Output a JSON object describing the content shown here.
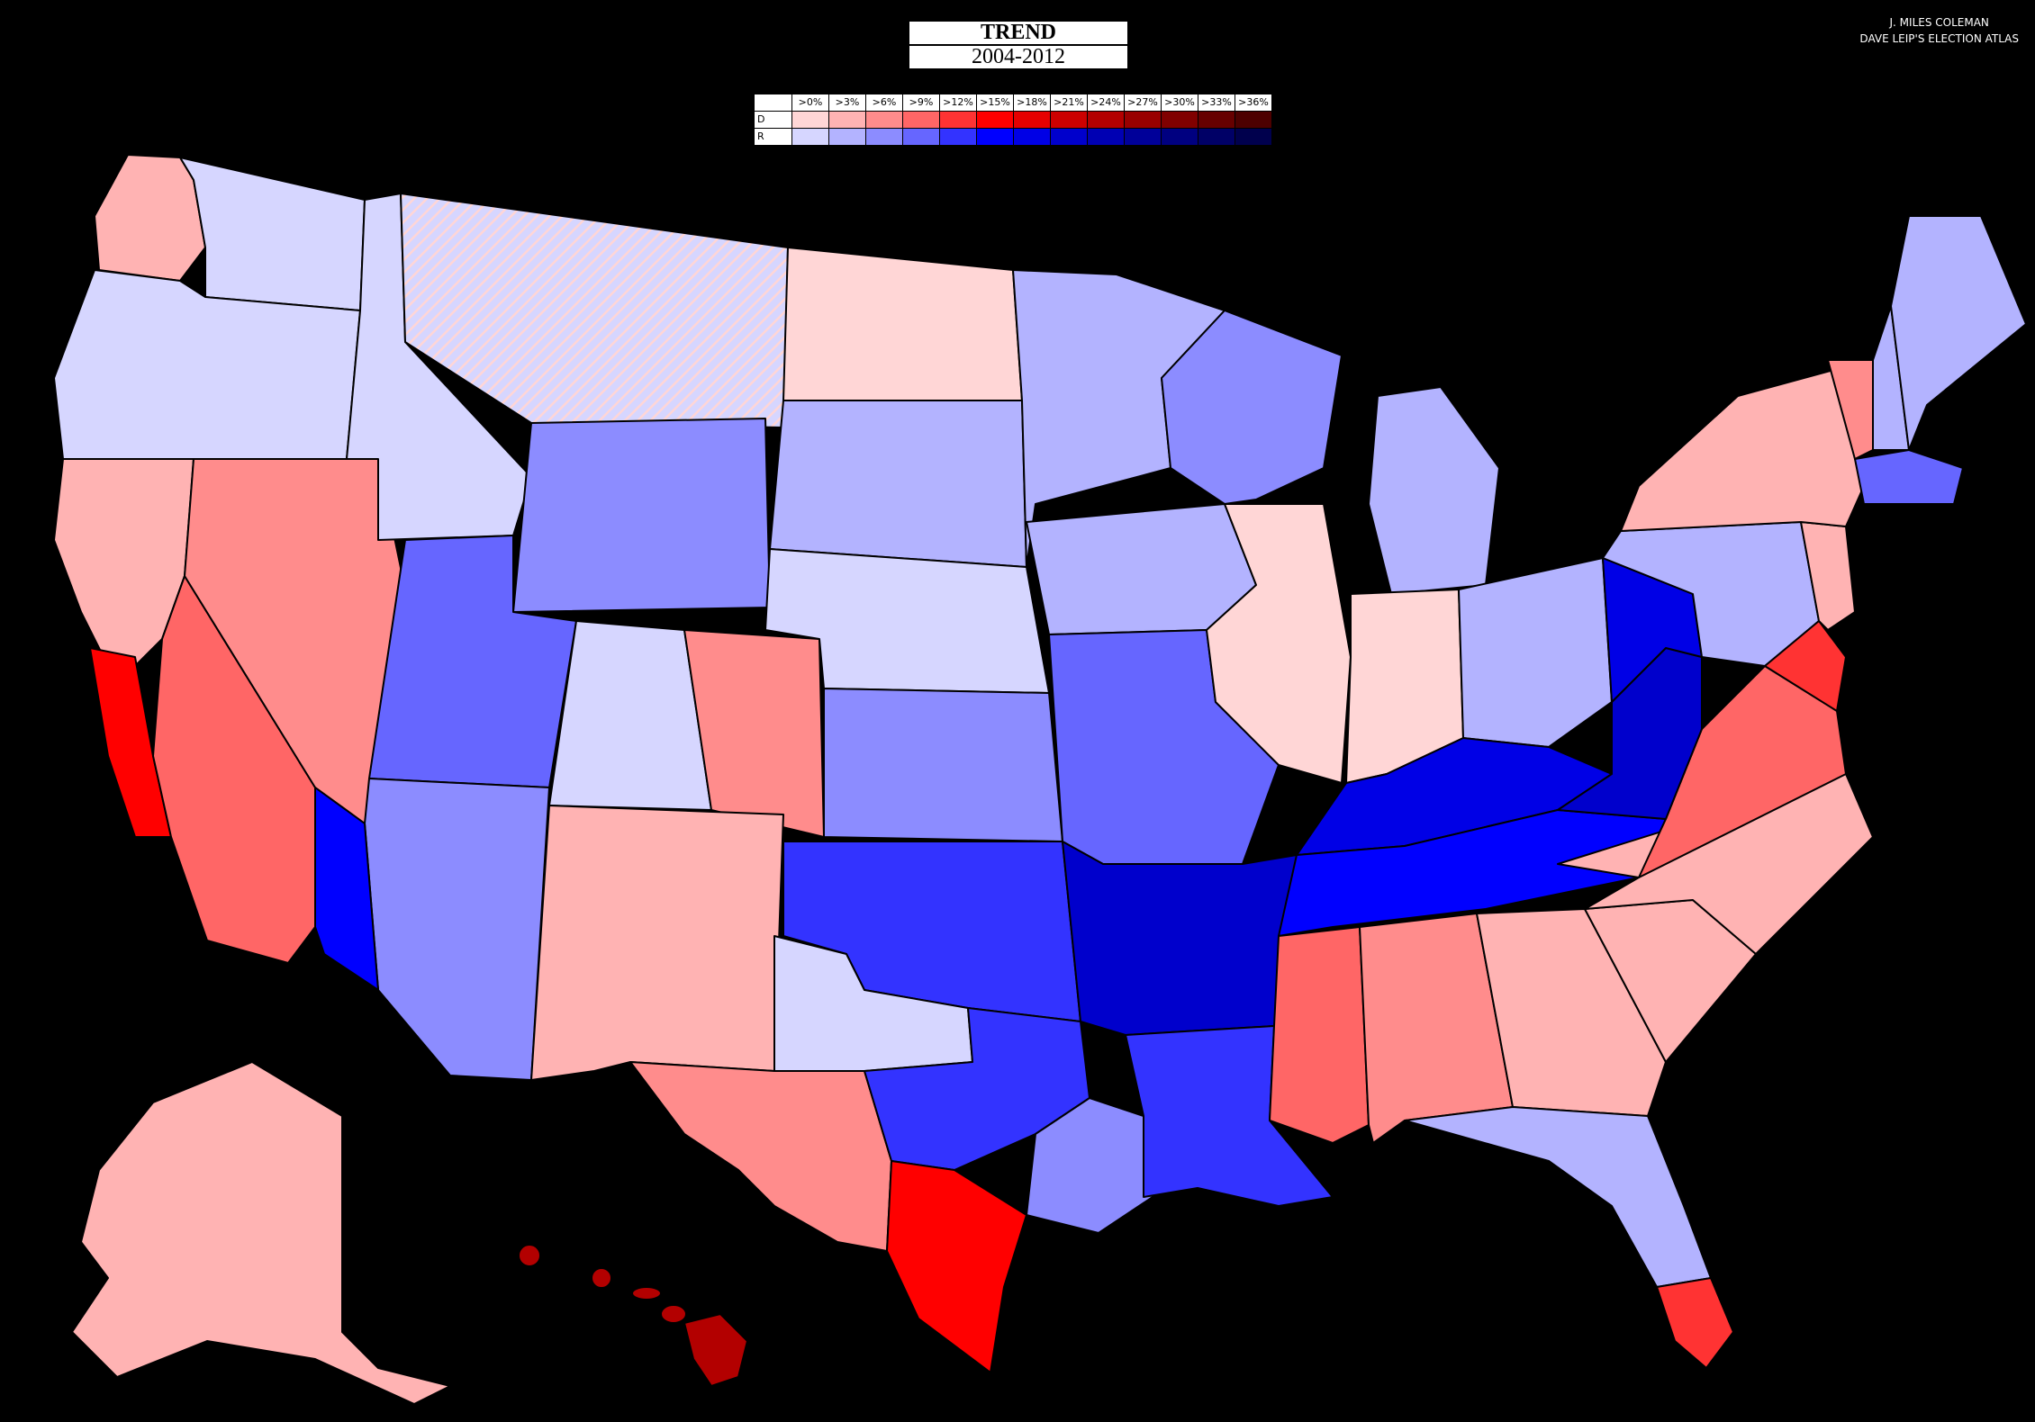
{
  "title": {
    "line1": "TREND",
    "line2": "2004-2012"
  },
  "credit": {
    "line1": "J. MILES COLEMAN",
    "line2": "DAVE LEIP'S ELECTION ATLAS"
  },
  "legend": {
    "headers": [
      ">0%",
      ">3%",
      ">6%",
      ">9%",
      ">12%",
      ">15%",
      ">18%",
      ">21%",
      ">24%",
      ">27%",
      ">30%",
      ">33%",
      ">36%"
    ],
    "rows": [
      {
        "label": "D",
        "colors": [
          "#ffd6d6",
          "#ffb3b3",
          "#ff8c8c",
          "#ff6666",
          "#ff3333",
          "#ff0000",
          "#e60000",
          "#cc0000",
          "#b30000",
          "#990000",
          "#800000",
          "#660000",
          "#4d0000"
        ]
      },
      {
        "label": "R",
        "colors": [
          "#d6d6ff",
          "#b3b3ff",
          "#8c8cff",
          "#6666ff",
          "#3333ff",
          "#0000ff",
          "#0000e6",
          "#0000cc",
          "#0000b3",
          "#000099",
          "#000080",
          "#000066",
          "#00004d"
        ]
      }
    ]
  },
  "regions": [
    {
      "name": "washington-west",
      "party": "D",
      "level": 1
    },
    {
      "name": "washington-east",
      "party": "R",
      "level": 0
    },
    {
      "name": "oregon",
      "party": "R",
      "level": 0
    },
    {
      "name": "california-north",
      "party": "D",
      "level": 1
    },
    {
      "name": "california-bay-area",
      "party": "D",
      "level": 5
    },
    {
      "name": "california-south",
      "party": "D",
      "level": 3
    },
    {
      "name": "nevada",
      "party": "D",
      "level": 2
    },
    {
      "name": "idaho",
      "party": "R",
      "level": 0
    },
    {
      "name": "montana",
      "party": "R",
      "level": 0
    },
    {
      "name": "wyoming",
      "party": "R",
      "level": 2
    },
    {
      "name": "utah",
      "party": "R",
      "level": 3
    },
    {
      "name": "arizona",
      "party": "R",
      "level": 2
    },
    {
      "name": "arizona-west",
      "party": "R",
      "level": 5
    },
    {
      "name": "colorado-west",
      "party": "R",
      "level": 0
    },
    {
      "name": "colorado-front-range",
      "party": "D",
      "level": 2
    },
    {
      "name": "new-mexico",
      "party": "D",
      "level": 1
    },
    {
      "name": "north-dakota",
      "party": "D",
      "level": 0
    },
    {
      "name": "south-dakota",
      "party": "R",
      "level": 1
    },
    {
      "name": "nebraska",
      "party": "R",
      "level": 0
    },
    {
      "name": "kansas",
      "party": "R",
      "level": 2
    },
    {
      "name": "oklahoma",
      "party": "R",
      "level": 4
    },
    {
      "name": "texas-west",
      "party": "D",
      "level": 2
    },
    {
      "name": "texas-panhandle",
      "party": "R",
      "level": 0
    },
    {
      "name": "texas-central",
      "party": "R",
      "level": 4
    },
    {
      "name": "texas-east",
      "party": "R",
      "level": 2
    },
    {
      "name": "texas-south",
      "party": "D",
      "level": 5
    },
    {
      "name": "minnesota",
      "party": "R",
      "level": 1
    },
    {
      "name": "iowa",
      "party": "R",
      "level": 1
    },
    {
      "name": "missouri",
      "party": "R",
      "level": 3
    },
    {
      "name": "arkansas",
      "party": "R",
      "level": 7
    },
    {
      "name": "louisiana",
      "party": "R",
      "level": 4
    },
    {
      "name": "wisconsin",
      "party": "R",
      "level": 2
    },
    {
      "name": "illinois",
      "party": "D",
      "level": 0
    },
    {
      "name": "michigan",
      "party": "R",
      "level": 1
    },
    {
      "name": "indiana",
      "party": "D",
      "level": 0
    },
    {
      "name": "ohio",
      "party": "R",
      "level": 1
    },
    {
      "name": "kentucky",
      "party": "R",
      "level": 6
    },
    {
      "name": "tennessee",
      "party": "R",
      "level": 5
    },
    {
      "name": "mississippi",
      "party": "D",
      "level": 3
    },
    {
      "name": "alabama",
      "party": "D",
      "level": 2
    },
    {
      "name": "georgia",
      "party": "D",
      "level": 1
    },
    {
      "name": "florida",
      "party": "R",
      "level": 1
    },
    {
      "name": "florida-south",
      "party": "D",
      "level": 4
    },
    {
      "name": "south-carolina",
      "party": "D",
      "level": 1
    },
    {
      "name": "north-carolina",
      "party": "D",
      "level": 1
    },
    {
      "name": "virginia",
      "party": "D",
      "level": 3
    },
    {
      "name": "west-virginia",
      "party": "R",
      "level": 7
    },
    {
      "name": "pennsylvania",
      "party": "R",
      "level": 1
    },
    {
      "name": "pennsylvania-west",
      "party": "R",
      "level": 6
    },
    {
      "name": "new-york",
      "party": "D",
      "level": 1
    },
    {
      "name": "new-jersey",
      "party": "D",
      "level": 1
    },
    {
      "name": "maryland",
      "party": "D",
      "level": 4
    },
    {
      "name": "vermont",
      "party": "D",
      "level": 2
    },
    {
      "name": "new-hampshire",
      "party": "R",
      "level": 1
    },
    {
      "name": "maine",
      "party": "R",
      "level": 1
    },
    {
      "name": "massachusetts",
      "party": "R",
      "level": 3
    },
    {
      "name": "alaska",
      "party": "D",
      "level": 1
    },
    {
      "name": "hawaii",
      "party": "D",
      "level": 8
    }
  ]
}
